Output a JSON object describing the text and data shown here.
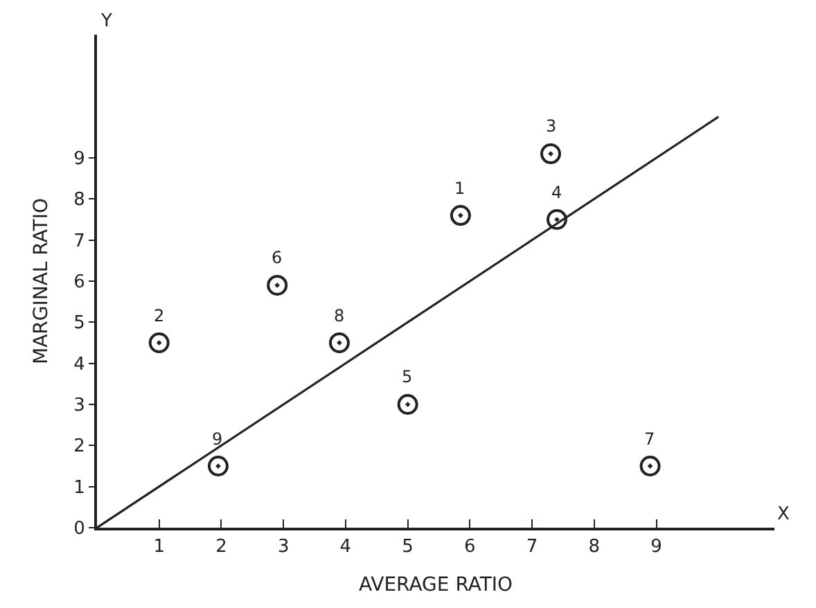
{
  "chart_data": {
    "type": "scatter",
    "xlabel": "AVERAGE RATIO",
    "ylabel": "MARGINAL RATIO",
    "xlim": [
      0,
      10.9
    ],
    "ylim": [
      0,
      12
    ],
    "xticks": [
      1,
      2,
      3,
      4,
      5,
      6,
      7,
      8,
      9
    ],
    "yticks": [
      0,
      1,
      2,
      3,
      4,
      5,
      6,
      7,
      8,
      9
    ],
    "marker": "circle",
    "series": [
      {
        "color": "#222222",
        "x": [
          5.85,
          1.0,
          7.3,
          7.4,
          5.0,
          2.9,
          8.9,
          3.9,
          1.95
        ],
        "values": [
          7.6,
          4.5,
          9.1,
          7.5,
          3.0,
          5.9,
          1.5,
          4.5,
          1.5
        ]
      },
      {
        "type": "line",
        "marker": "none",
        "color": "#222222",
        "x": [
          0,
          10
        ],
        "values": [
          0,
          10
        ]
      }
    ],
    "annotations": [
      "Y",
      "X",
      {
        "text": "1",
        "x": 5.85,
        "y": 7.6
      },
      {
        "text": "2",
        "x": 1.0,
        "y": 4.5
      },
      {
        "text": "3",
        "x": 7.3,
        "y": 9.1
      },
      {
        "text": "4",
        "x": 7.4,
        "y": 7.5
      },
      {
        "text": "5",
        "x": 5.0,
        "y": 3.0
      },
      {
        "text": "6",
        "x": 2.9,
        "y": 5.9
      },
      {
        "text": "7",
        "x": 8.9,
        "y": 1.5
      },
      {
        "text": "8",
        "x": 3.9,
        "y": 4.5
      },
      {
        "text": "9",
        "x": 1.95,
        "y": 1.5
      }
    ]
  }
}
